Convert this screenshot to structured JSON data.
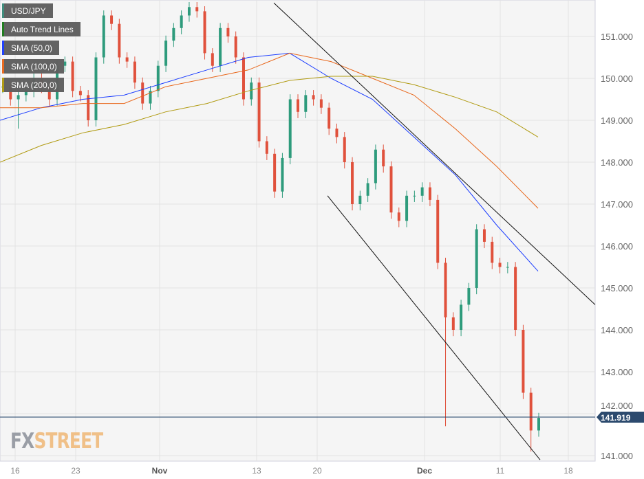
{
  "chart_data": {
    "type": "candlestick",
    "title": "USD/JPY",
    "legend": [
      {
        "label": "USD/JPY",
        "color": "#3a8a7a"
      },
      {
        "label": "Auto Trend Lines",
        "color": "#1a7a1a"
      },
      {
        "label": "SMA (50,0)",
        "color": "#1a3cff"
      },
      {
        "label": "SMA (100,0)",
        "color": "#e8661a"
      },
      {
        "label": "SMA (200,0)",
        "color": "#b09a10"
      }
    ],
    "ylim": [
      140.8,
      151.8
    ],
    "yticks": [
      "141.000",
      "142.000",
      "143.000",
      "144.000",
      "145.000",
      "146.000",
      "147.000",
      "148.000",
      "149.000",
      "150.000",
      "151.000"
    ],
    "xticks": [
      {
        "label": "16",
        "bold": false
      },
      {
        "label": "23",
        "bold": false
      },
      {
        "label": "Nov",
        "bold": true
      },
      {
        "label": "13",
        "bold": false
      },
      {
        "label": "20",
        "bold": false
      },
      {
        "label": "Dec",
        "bold": true
      },
      {
        "label": "11",
        "bold": false
      },
      {
        "label": "18",
        "bold": false
      }
    ],
    "closes": [
      149.8,
      149.5,
      149.6,
      149.7,
      150.0,
      149.8,
      149.5,
      150.3,
      150.4,
      149.7,
      149.6,
      149.0,
      150.5,
      151.5,
      151.3,
      150.5,
      150.4,
      149.9,
      149.4,
      149.7,
      150.3,
      150.9,
      151.2,
      151.5,
      151.7,
      151.6,
      150.6,
      150.3,
      151.2,
      151.0,
      150.5,
      149.5,
      149.9,
      148.5,
      148.2,
      147.3,
      148.1,
      149.5,
      149.2,
      149.6,
      149.5,
      149.3,
      148.8,
      148.6,
      148.0,
      147.0,
      147.2,
      147.5,
      148.3,
      147.9,
      146.8,
      146.6,
      147.2,
      147.2,
      147.4,
      147.1,
      145.6,
      144.3,
      144.0,
      144.6,
      145.0,
      146.4,
      146.1,
      145.6,
      145.5,
      145.5,
      144.0,
      142.5,
      141.6,
      141.9
    ],
    "spikes": [
      {
        "index": 2,
        "low": 148.8
      },
      {
        "index": 57,
        "low": 141.7
      },
      {
        "index": 68,
        "low": 141.1
      }
    ],
    "sma50": [
      149.0,
      149.3,
      149.5,
      149.6,
      149.9,
      150.2,
      150.5,
      150.6,
      150.0,
      149.5,
      148.6,
      147.7,
      146.5,
      145.4
    ],
    "sma100": [
      149.3,
      149.3,
      149.4,
      149.4,
      149.8,
      150.0,
      150.2,
      150.6,
      150.4,
      150.0,
      149.6,
      148.8,
      147.9,
      146.9
    ],
    "sma200": [
      148.0,
      148.4,
      148.7,
      148.9,
      149.2,
      149.4,
      149.7,
      149.95,
      150.05,
      150.05,
      149.85,
      149.55,
      149.2,
      148.6
    ],
    "trend_upper": [
      151.8,
      144.6
    ],
    "trend_lower": [
      147.2,
      140.9
    ],
    "last_price": "141.919",
    "colors": {
      "up": "#2e9b7c",
      "down": "#e0513c",
      "price_tag": "#2c4a6e"
    }
  },
  "watermark": {
    "fx": "FX",
    "street": "STREET"
  }
}
